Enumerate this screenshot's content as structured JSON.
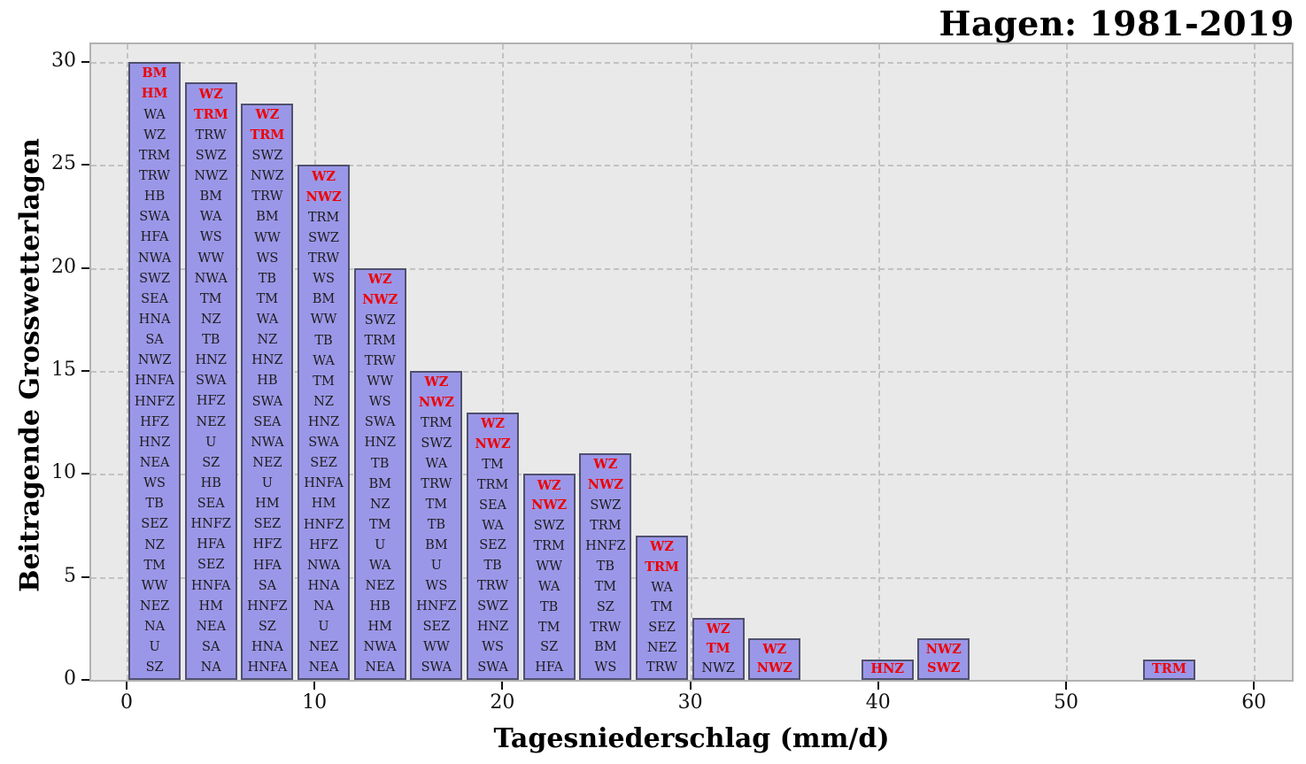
{
  "chart_data": {
    "type": "bar",
    "title": "Hagen: 1981-2019",
    "xlabel": "Tagesniederschlag (mm/d)",
    "ylabel": "Beitragende Grosswetterlagen",
    "xlim": [
      -2,
      62
    ],
    "ylim": [
      0,
      31
    ],
    "xticks": [
      0,
      10,
      20,
      30,
      40,
      50,
      60
    ],
    "yticks": [
      0,
      5,
      10,
      15,
      20,
      25,
      30
    ],
    "grid": true,
    "legend_position": "none",
    "bin_width": 3,
    "colors": {
      "bar_fill": "#9b97e8",
      "bar_edge": "#50506e",
      "highlight_text": "#ee0000",
      "normal_text": "#1c1c1c",
      "plot_background": "#e9e9e9",
      "gridline": "#c2c2c2"
    },
    "bars": [
      {
        "bin_start": 0,
        "bin_end": 3,
        "count": 30,
        "highlight_count": 2,
        "labels": [
          "BM",
          "HM",
          "WA",
          "WZ",
          "TRM",
          "TRW",
          "HB",
          "SWA",
          "HFA",
          "NWA",
          "SWZ",
          "SEA",
          "HNA",
          "SA",
          "NWZ",
          "HNFA",
          "HNFZ",
          "HFZ",
          "HNZ",
          "NEA",
          "WS",
          "TB",
          "SEZ",
          "NZ",
          "TM",
          "WW",
          "NEZ",
          "NA",
          "U",
          "SZ"
        ]
      },
      {
        "bin_start": 3,
        "bin_end": 6,
        "count": 29,
        "highlight_count": 2,
        "labels": [
          "WZ",
          "TRM",
          "TRW",
          "SWZ",
          "NWZ",
          "BM",
          "WA",
          "WS",
          "WW",
          "NWA",
          "TM",
          "NZ",
          "TB",
          "HNZ",
          "SWA",
          "HFZ",
          "NEZ",
          "U",
          "SZ",
          "HB",
          "SEA",
          "HNFZ",
          "HFA",
          "SEZ",
          "HNFA",
          "HM",
          "NEA",
          "SA",
          "NA"
        ]
      },
      {
        "bin_start": 6,
        "bin_end": 9,
        "count": 28,
        "highlight_count": 2,
        "labels": [
          "WZ",
          "TRM",
          "SWZ",
          "NWZ",
          "TRW",
          "BM",
          "WW",
          "WS",
          "TB",
          "TM",
          "WA",
          "NZ",
          "HNZ",
          "HB",
          "SWA",
          "SEA",
          "NWA",
          "NEZ",
          "U",
          "HM",
          "SEZ",
          "HFZ",
          "HFA",
          "SA",
          "HNFZ",
          "SZ",
          "HNA",
          "HNFA"
        ]
      },
      {
        "bin_start": 9,
        "bin_end": 12,
        "count": 25,
        "highlight_count": 2,
        "labels": [
          "WZ",
          "NWZ",
          "TRM",
          "SWZ",
          "TRW",
          "WS",
          "BM",
          "WW",
          "TB",
          "WA",
          "TM",
          "NZ",
          "HNZ",
          "SWA",
          "SEZ",
          "HNFA",
          "HM",
          "HNFZ",
          "HFZ",
          "NWA",
          "HNA",
          "NA",
          "U",
          "NEZ",
          "NEA"
        ]
      },
      {
        "bin_start": 12,
        "bin_end": 15,
        "count": 20,
        "highlight_count": 2,
        "labels": [
          "WZ",
          "NWZ",
          "SWZ",
          "TRM",
          "TRW",
          "WW",
          "WS",
          "SWA",
          "HNZ",
          "TB",
          "BM",
          "NZ",
          "TM",
          "U",
          "WA",
          "NEZ",
          "HB",
          "HM",
          "NWA",
          "NEA"
        ]
      },
      {
        "bin_start": 15,
        "bin_end": 18,
        "count": 15,
        "highlight_count": 2,
        "labels": [
          "WZ",
          "NWZ",
          "TRM",
          "SWZ",
          "WA",
          "TRW",
          "TM",
          "TB",
          "BM",
          "U",
          "WS",
          "HNFZ",
          "SEZ",
          "WW",
          "SWA"
        ]
      },
      {
        "bin_start": 18,
        "bin_end": 21,
        "count": 13,
        "highlight_count": 2,
        "labels": [
          "WZ",
          "NWZ",
          "TM",
          "TRM",
          "SEA",
          "WA",
          "SEZ",
          "TB",
          "TRW",
          "SWZ",
          "HNZ",
          "WS",
          "SWA"
        ]
      },
      {
        "bin_start": 21,
        "bin_end": 24,
        "count": 10,
        "highlight_count": 2,
        "labels": [
          "WZ",
          "NWZ",
          "SWZ",
          "TRM",
          "WW",
          "WA",
          "TB",
          "TM",
          "SZ",
          "HFA"
        ]
      },
      {
        "bin_start": 24,
        "bin_end": 27,
        "count": 11,
        "highlight_count": 2,
        "labels": [
          "WZ",
          "NWZ",
          "SWZ",
          "TRM",
          "HNFZ",
          "TB",
          "TM",
          "SZ",
          "TRW",
          "BM",
          "WS"
        ]
      },
      {
        "bin_start": 27,
        "bin_end": 30,
        "count": 7,
        "highlight_count": 2,
        "labels": [
          "WZ",
          "TRM",
          "WA",
          "TM",
          "SEZ",
          "NEZ",
          "TRW"
        ]
      },
      {
        "bin_start": 30,
        "bin_end": 33,
        "count": 3,
        "highlight_count": 2,
        "labels": [
          "WZ",
          "TM",
          "NWZ"
        ]
      },
      {
        "bin_start": 33,
        "bin_end": 36,
        "count": 2,
        "highlight_count": 2,
        "labels": [
          "WZ",
          "NWZ"
        ]
      },
      {
        "bin_start": 39,
        "bin_end": 42,
        "count": 1,
        "highlight_count": 1,
        "labels": [
          "HNZ"
        ]
      },
      {
        "bin_start": 42,
        "bin_end": 45,
        "count": 2,
        "highlight_count": 2,
        "labels": [
          "NWZ",
          "SWZ"
        ]
      },
      {
        "bin_start": 54,
        "bin_end": 57,
        "count": 1,
        "highlight_count": 1,
        "labels": [
          "TRM"
        ]
      }
    ]
  }
}
